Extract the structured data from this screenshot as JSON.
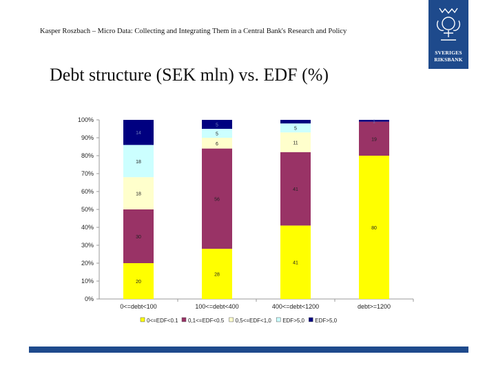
{
  "header": {
    "text": "Kasper Roszbach – Micro Data: Collecting and Integrating Them in a Central Bank's Research and Policy"
  },
  "title": "Debt structure (SEK mln) vs. EDF (%)",
  "logo": {
    "line1": "SVERIGES",
    "line2": "RIKSBANK"
  },
  "colors": {
    "brand": "#1e4a8c"
  },
  "chart_data": {
    "type": "bar",
    "stacked": "percent",
    "categories": [
      "0<=debt<100",
      "100<=debt<400",
      "400<=debt<1200",
      "debt>=1200"
    ],
    "series": [
      {
        "name": "0<=EDF<0.1",
        "color": "#ffff00",
        "values": [
          20,
          28,
          41,
          80
        ],
        "labels": [
          "20",
          "28",
          "41",
          "80"
        ]
      },
      {
        "name": "0,1<=EDF<0.5",
        "color": "#993366",
        "values": [
          30,
          56,
          41,
          19
        ],
        "labels": [
          "30",
          "56",
          "41",
          "19"
        ]
      },
      {
        "name": "0,5<=EDF<1,0",
        "color": "#ffffcc",
        "values": [
          18,
          6,
          11,
          0
        ],
        "labels": [
          "18",
          "6",
          "11",
          ""
        ]
      },
      {
        "name": "EDF>5,0",
        "color": "#ccffff",
        "values": [
          18,
          5,
          5,
          0
        ],
        "labels": [
          "18",
          "5",
          "5",
          ""
        ]
      },
      {
        "name": "EDF>5,0",
        "color": "#000080",
        "values": [
          14,
          5,
          2,
          1
        ],
        "labels": [
          "14",
          "5",
          "",
          "1"
        ]
      }
    ],
    "y_ticks": [
      "0%",
      "10%",
      "20%",
      "30%",
      "40%",
      "50%",
      "60%",
      "70%",
      "80%",
      "90%",
      "100%"
    ],
    "ylim": [
      0,
      100
    ],
    "legend_position": "bottom"
  }
}
